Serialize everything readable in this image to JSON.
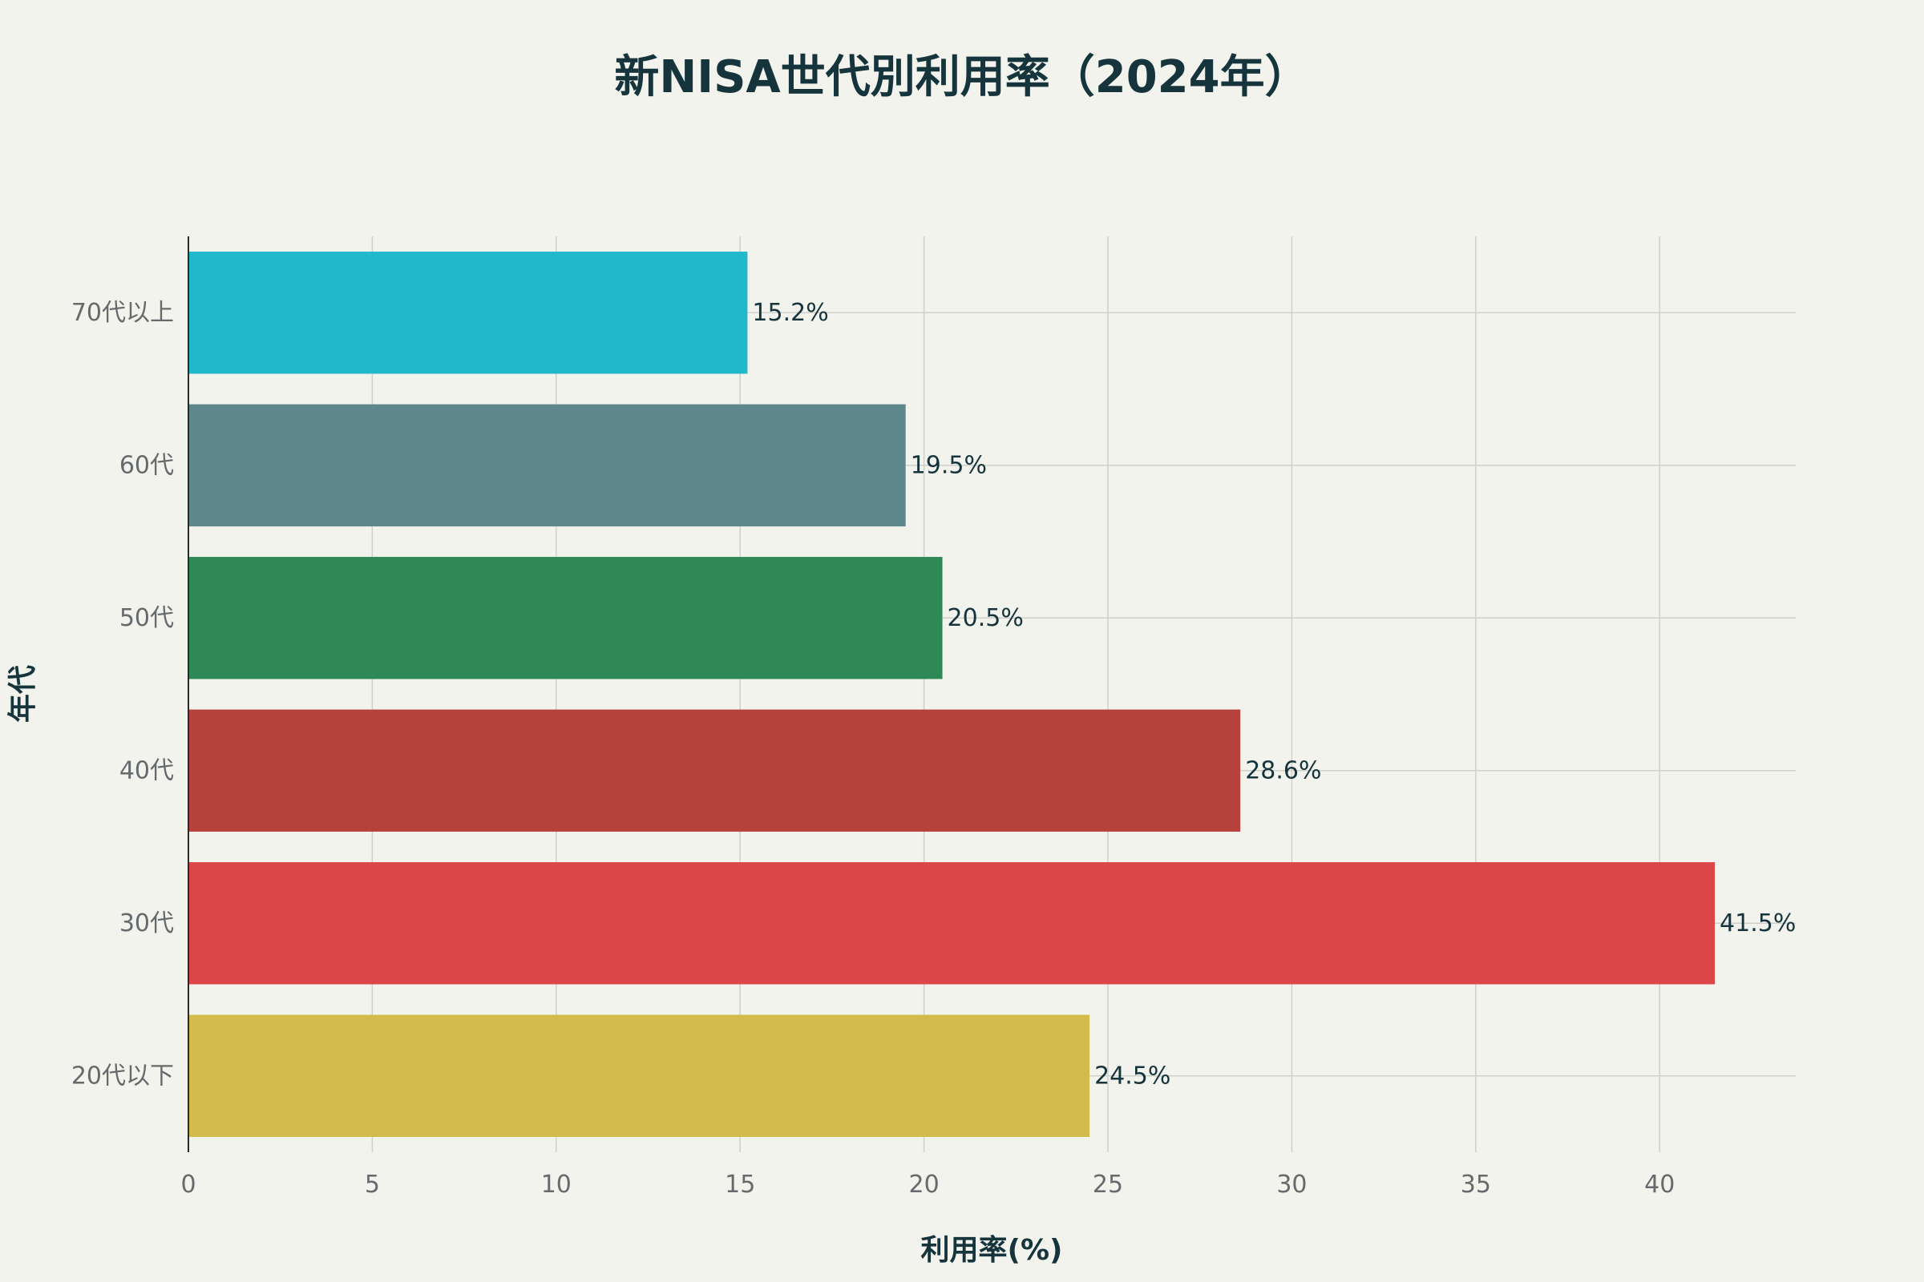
{
  "chart_data": {
    "type": "bar",
    "orientation": "horizontal",
    "title": "新NISA世代別利用率（2024年）",
    "xlabel": "利用率(%)",
    "ylabel": "年代",
    "categories": [
      "20代以下",
      "30代",
      "40代",
      "50代",
      "60代",
      "70代以上"
    ],
    "values": [
      24.5,
      41.5,
      28.6,
      20.5,
      19.5,
      15.2
    ],
    "data_labels": [
      "24.5%",
      "41.5%",
      "28.6%",
      "20.5%",
      "19.5%",
      "15.2%"
    ],
    "colors": [
      "#d2bb4c",
      "#db4648",
      "#b6423e",
      "#2e8957",
      "#5e878c",
      "#21b8cc"
    ],
    "xlim": [
      0,
      43.7
    ],
    "xticks": [
      0,
      5,
      10,
      15,
      20,
      25,
      30,
      35,
      40
    ],
    "grid": true,
    "legend": "none"
  }
}
